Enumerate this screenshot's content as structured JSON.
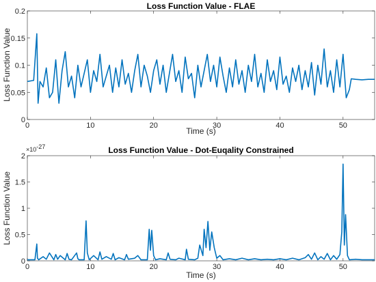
{
  "colors": {
    "series": "#0072BD",
    "axis": "#262626",
    "background": "#ffffff"
  },
  "chart_data": [
    {
      "type": "line",
      "title": "Loss Function Value - FLAE",
      "xlabel": "Time (s)",
      "ylabel": "Loss Function Value",
      "xlim": [
        0,
        55
      ],
      "ylim": [
        0,
        0.2
      ],
      "xticks": [
        0,
        10,
        20,
        30,
        40,
        50
      ],
      "yticks": [
        0,
        0.05,
        0.1,
        0.15,
        0.2
      ],
      "xtick_labels": [
        "0",
        "10",
        "20",
        "30",
        "40",
        "50"
      ],
      "ytick_labels": [
        "0",
        "0.05",
        "0.1",
        "0.15",
        "0.2"
      ],
      "grid": false,
      "series": [
        {
          "color": "#0072BD",
          "x": [
            0,
            1.0,
            1.5,
            1.7,
            2.0,
            2.5,
            3.0,
            3.5,
            4.0,
            4.5,
            5.0,
            5.5,
            6.0,
            6.5,
            7.0,
            7.5,
            8.0,
            8.5,
            9.0,
            9.5,
            10.0,
            10.5,
            11.0,
            11.5,
            12.0,
            12.5,
            13.0,
            13.5,
            14.0,
            14.5,
            15.0,
            15.5,
            16.0,
            16.5,
            17.0,
            17.5,
            18.0,
            18.5,
            19.0,
            19.5,
            20.0,
            20.5,
            21.0,
            21.5,
            22.0,
            22.5,
            23.0,
            23.5,
            24.0,
            24.5,
            25.0,
            25.5,
            26.0,
            26.5,
            27.0,
            27.5,
            28.0,
            28.5,
            29.0,
            29.5,
            30.0,
            30.5,
            31.0,
            31.5,
            32.0,
            32.5,
            33.0,
            33.5,
            34.0,
            34.5,
            35.0,
            35.5,
            36.0,
            36.5,
            37.0,
            37.5,
            38.0,
            38.5,
            39.0,
            39.5,
            40.0,
            40.5,
            41.0,
            41.5,
            42.0,
            42.5,
            43.0,
            43.5,
            44.0,
            44.5,
            45.0,
            45.5,
            46.0,
            46.5,
            47.0,
            47.5,
            48.0,
            48.5,
            49.0,
            49.5,
            50.0,
            50.5,
            51.0,
            51.3,
            52.0,
            53.0,
            54.0,
            55.0
          ],
          "y": [
            0.07,
            0.072,
            0.158,
            0.03,
            0.07,
            0.06,
            0.095,
            0.04,
            0.05,
            0.11,
            0.03,
            0.09,
            0.125,
            0.06,
            0.08,
            0.04,
            0.1,
            0.06,
            0.085,
            0.11,
            0.05,
            0.09,
            0.07,
            0.12,
            0.06,
            0.08,
            0.1,
            0.05,
            0.095,
            0.06,
            0.11,
            0.065,
            0.085,
            0.05,
            0.09,
            0.12,
            0.06,
            0.1,
            0.08,
            0.05,
            0.09,
            0.11,
            0.065,
            0.1,
            0.05,
            0.085,
            0.12,
            0.07,
            0.09,
            0.05,
            0.115,
            0.075,
            0.085,
            0.04,
            0.1,
            0.06,
            0.09,
            0.12,
            0.07,
            0.1,
            0.06,
            0.115,
            0.08,
            0.05,
            0.095,
            0.06,
            0.11,
            0.065,
            0.09,
            0.05,
            0.1,
            0.07,
            0.12,
            0.06,
            0.085,
            0.05,
            0.11,
            0.07,
            0.09,
            0.055,
            0.115,
            0.065,
            0.08,
            0.05,
            0.095,
            0.07,
            0.1,
            0.055,
            0.09,
            0.06,
            0.105,
            0.045,
            0.1,
            0.065,
            0.13,
            0.06,
            0.09,
            0.05,
            0.11,
            0.06,
            0.12,
            0.04,
            0.055,
            0.075,
            0.074,
            0.073,
            0.074,
            0.074
          ]
        }
      ]
    },
    {
      "type": "line",
      "title": "Loss Function Value - Dot-Euqality Constrained",
      "xlabel": "Time (s)",
      "ylabel": "Loss Function Value",
      "y_multiplier": "×10",
      "y_exponent": "-27",
      "xlim": [
        0,
        55
      ],
      "ylim": [
        0,
        2
      ],
      "xticks": [
        0,
        10,
        20,
        30,
        40,
        50
      ],
      "yticks": [
        0,
        0.5,
        1,
        1.5,
        2
      ],
      "xtick_labels": [
        "0",
        "10",
        "20",
        "30",
        "40",
        "50"
      ],
      "ytick_labels": [
        "0",
        "0.5",
        "1",
        "1.5",
        "2"
      ],
      "grid": false,
      "series": [
        {
          "color": "#0072BD",
          "x": [
            0,
            1.2,
            1.5,
            1.6,
            1.8,
            2.5,
            3.0,
            3.5,
            4.2,
            4.5,
            4.8,
            5.2,
            6.0,
            6.3,
            6.6,
            7.0,
            7.8,
            8.0,
            8.2,
            9.0,
            9.3,
            9.5,
            9.8,
            10.5,
            11.2,
            11.5,
            11.8,
            12.5,
            13.3,
            13.6,
            13.9,
            14.5,
            15.4,
            15.7,
            16.0,
            17.0,
            17.5,
            18.0,
            19.0,
            19.3,
            19.5,
            19.7,
            20.0,
            20.3,
            21.0,
            22.0,
            22.3,
            22.6,
            23.5,
            24.0,
            25.0,
            25.2,
            25.5,
            26.5,
            27.0,
            27.3,
            27.8,
            28.0,
            28.3,
            28.6,
            28.9,
            29.2,
            29.6,
            30.0,
            30.5,
            31.0,
            32.0,
            33.0,
            34.0,
            35.0,
            36.0,
            37.0,
            38.0,
            39.0,
            40.0,
            41.0,
            42.0,
            43.0,
            44.0,
            44.5,
            45.0,
            45.5,
            46.0,
            46.5,
            47.0,
            47.5,
            48.0,
            48.5,
            49.0,
            49.5,
            49.8,
            50.0,
            50.2,
            50.4,
            50.7,
            51.0,
            52.0,
            53.0,
            54.0,
            55.0
          ],
          "y": [
            0.02,
            0.02,
            0.32,
            0.05,
            0.02,
            0.08,
            0.03,
            0.15,
            0.02,
            0.12,
            0.03,
            0.1,
            0.02,
            0.14,
            0.03,
            0.02,
            0.15,
            0.04,
            0.02,
            0.02,
            0.76,
            0.15,
            0.02,
            0.1,
            0.02,
            0.17,
            0.03,
            0.08,
            0.03,
            0.14,
            0.02,
            0.06,
            0.02,
            0.12,
            0.03,
            0.05,
            0.1,
            0.02,
            0.02,
            0.6,
            0.2,
            0.58,
            0.1,
            0.02,
            0.04,
            0.02,
            0.15,
            0.03,
            0.02,
            0.05,
            0.02,
            0.22,
            0.03,
            0.02,
            0.05,
            0.3,
            0.1,
            0.6,
            0.25,
            0.75,
            0.2,
            0.55,
            0.25,
            0.05,
            0.1,
            0.02,
            0.04,
            0.02,
            0.05,
            0.02,
            0.04,
            0.02,
            0.03,
            0.02,
            0.04,
            0.02,
            0.05,
            0.02,
            0.06,
            0.12,
            0.03,
            0.15,
            0.02,
            0.08,
            0.03,
            0.14,
            0.02,
            0.1,
            0.03,
            0.12,
            0.55,
            1.84,
            0.3,
            0.88,
            0.1,
            0.02,
            0.03,
            0.02,
            0.02,
            0.02
          ]
        }
      ]
    }
  ]
}
